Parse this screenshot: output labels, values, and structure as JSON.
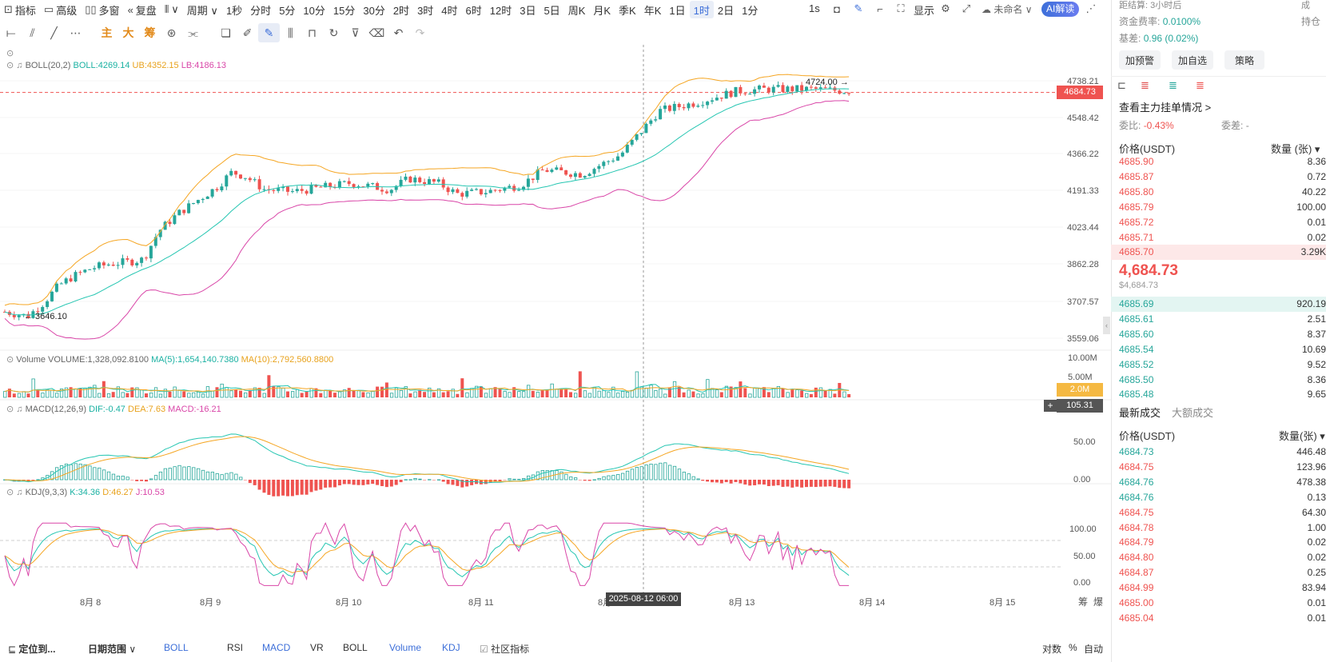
{
  "toolbar": {
    "items": [
      {
        "name": "indicator",
        "icon": "chart-line-icon",
        "label": "指标"
      },
      {
        "name": "advanced",
        "icon": "calendar-icon",
        "label": "高级"
      },
      {
        "name": "multi-window",
        "icon": "grid-icon",
        "label": "多窗"
      },
      {
        "name": "replay",
        "icon": "rewind-icon",
        "label": "复盘"
      },
      {
        "name": "chart-type",
        "icon": "candle-icon",
        "label": "∨"
      },
      {
        "name": "period",
        "icon": "",
        "label": "周期 ∨"
      }
    ],
    "intervals": [
      "1秒",
      "分时",
      "5分",
      "10分",
      "15分",
      "30分",
      "2时",
      "3时",
      "4时",
      "6时",
      "12时",
      "3日",
      "5日",
      "周K",
      "月K",
      "季K",
      "年K",
      "1日",
      "1时",
      "2日",
      "1分"
    ],
    "selected_interval": "1时",
    "right_items": {
      "seconds": "1s",
      "display": "显示",
      "unnamed": "未命名",
      "ai": "AI解读"
    }
  },
  "drawbar": {
    "chars": [
      "主",
      "大",
      "筹"
    ]
  },
  "boll": {
    "label": "BOLL(20,2)",
    "boll": "BOLL:4269.14",
    "ub": "UB:4352.15",
    "lb": "LB:4186.13"
  },
  "volume": {
    "label": "Volume",
    "vol": "VOLUME:1,328,092.8100",
    "ma5": "MA(5):1,654,140.7380",
    "ma10": "MA(10):2,792,560.8800"
  },
  "macd": {
    "label": "MACD(12,26,9)",
    "dif": "DIF:-0.47",
    "dea": "DEA:7.63",
    "macd": "MACD:-16.21"
  },
  "kdj": {
    "label": "KDJ(9,3,3)",
    "k": "K:34.36",
    "d": "D:46.27",
    "j": "J:10.53"
  },
  "price_axis": [
    "4738.21",
    "4548.42",
    "4366.22",
    "4191.33",
    "4023.44",
    "3862.28",
    "3707.57",
    "3559.06"
  ],
  "current_price_tag": "4684.73",
  "high_marker": "4724.00 →",
  "low_marker": "← 3646.10",
  "volume_axis": [
    "10.00M",
    "5.00M"
  ],
  "volume_tag": "2.0M",
  "macd_tag": "105.31",
  "macd_axis": [
    "50.00",
    "0.00"
  ],
  "kdj_axis": [
    "100.00",
    "50.00",
    "0.00"
  ],
  "dates": [
    "8月 8",
    "8月 9",
    "8月 10",
    "8月 11",
    "8月 12",
    "8月 13",
    "8月 14",
    "8月 15"
  ],
  "crosshair_label": "2025-08-12 06:00",
  "bottom": {
    "locate": "定位到...",
    "range": "日期范围",
    "tabs": [
      "BOLL",
      "RSI",
      "MACD",
      "VR",
      "BOLL",
      "Volume",
      "KDJ"
    ],
    "community": "社区指标",
    "right": [
      "对数",
      "%",
      "自动"
    ],
    "corner": [
      "筹",
      "爆"
    ]
  },
  "rpanel": {
    "settle_label": "距结算:",
    "settle_value": "3小时后",
    "funding_label": "资金费率:",
    "funding_value": "0.0100%",
    "basis_label": "基差:",
    "basis_value": "0.96 (0.02%)",
    "cut1": "成",
    "cut2": "持仓",
    "buttons": [
      "加预警",
      "加自选",
      "策略"
    ],
    "orders_link": "查看主力挂单情况 >",
    "ratio_label": "委比:",
    "ratio_value": "-0.43%",
    "diff_label": "委差:",
    "diff_value": "-",
    "header_price": "价格(USDT)",
    "header_qty": "数量 (张) ▾",
    "asks": [
      {
        "p": "4685.90",
        "q": "8.36"
      },
      {
        "p": "4685.87",
        "q": "0.72"
      },
      {
        "p": "4685.80",
        "q": "40.22"
      },
      {
        "p": "4685.79",
        "q": "100.00"
      },
      {
        "p": "4685.72",
        "q": "0.01"
      },
      {
        "p": "4685.71",
        "q": "0.02"
      },
      {
        "p": "4685.70",
        "q": "3.29K"
      }
    ],
    "last": "4,684.73",
    "last_usd": "$4,684.73",
    "bids": [
      {
        "p": "4685.69",
        "q": "920.19"
      },
      {
        "p": "4685.61",
        "q": "2.51"
      },
      {
        "p": "4685.60",
        "q": "8.37"
      },
      {
        "p": "4685.54",
        "q": "10.69"
      },
      {
        "p": "4685.52",
        "q": "9.52"
      },
      {
        "p": "4685.50",
        "q": "8.36"
      },
      {
        "p": "4685.48",
        "q": "9.65"
      }
    ],
    "tabs": [
      "最新成交",
      "大额成交"
    ],
    "trades_header_price": "价格(USDT)",
    "trades_header_qty": "数量(张) ▾",
    "trades": [
      {
        "p": "4684.73",
        "q": "446.48",
        "c": "g"
      },
      {
        "p": "4684.75",
        "q": "123.96",
        "c": "r"
      },
      {
        "p": "4684.76",
        "q": "478.38",
        "c": "g"
      },
      {
        "p": "4684.76",
        "q": "0.13",
        "c": "g"
      },
      {
        "p": "4684.75",
        "q": "64.30",
        "c": "r"
      },
      {
        "p": "4684.78",
        "q": "1.00",
        "c": "r"
      },
      {
        "p": "4684.79",
        "q": "0.02",
        "c": "r"
      },
      {
        "p": "4684.80",
        "q": "0.02",
        "c": "r"
      },
      {
        "p": "4684.87",
        "q": "0.25",
        "c": "r"
      },
      {
        "p": "4684.99",
        "q": "83.94",
        "c": "r"
      },
      {
        "p": "4685.00",
        "q": "0.01",
        "c": "r"
      },
      {
        "p": "4685.04",
        "q": "0.01",
        "c": "r"
      }
    ]
  },
  "colors": {
    "up": "#26a69a",
    "down": "#ef5350",
    "boll": "#26c6b2",
    "ub": "#f5a623",
    "lb": "#d946a8",
    "accent": "#3d6fd9"
  }
}
